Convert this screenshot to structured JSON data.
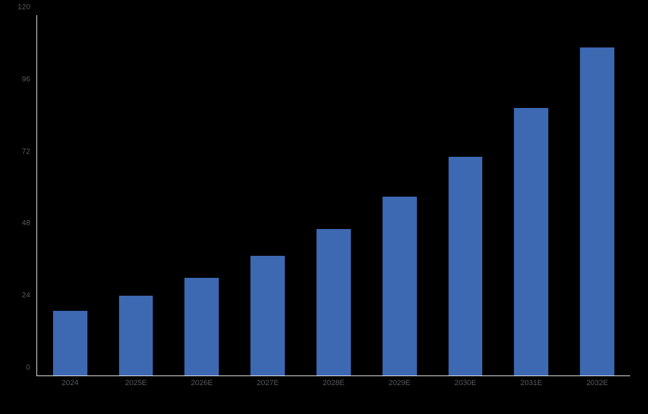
{
  "chart_data": {
    "type": "bar",
    "title": "",
    "xlabel": "",
    "ylabel": "",
    "categories": [
      "2024",
      "2025E",
      "2026E",
      "2027E",
      "2028E",
      "2029E",
      "2030E",
      "2031E",
      "2032E"
    ],
    "values": [
      21.6,
      26.6,
      32.5,
      39.8,
      48.7,
      59.5,
      72.8,
      89.2,
      109.2
    ],
    "ylim": [
      0,
      120
    ],
    "yticks": [
      0,
      24,
      48,
      72,
      96,
      120
    ],
    "grid": false,
    "legend_position": "none",
    "colors": {
      "bar": "#3D68B2",
      "axis_line": "#E8E8E8",
      "tick_label": "#595959",
      "background": "#000000"
    }
  }
}
